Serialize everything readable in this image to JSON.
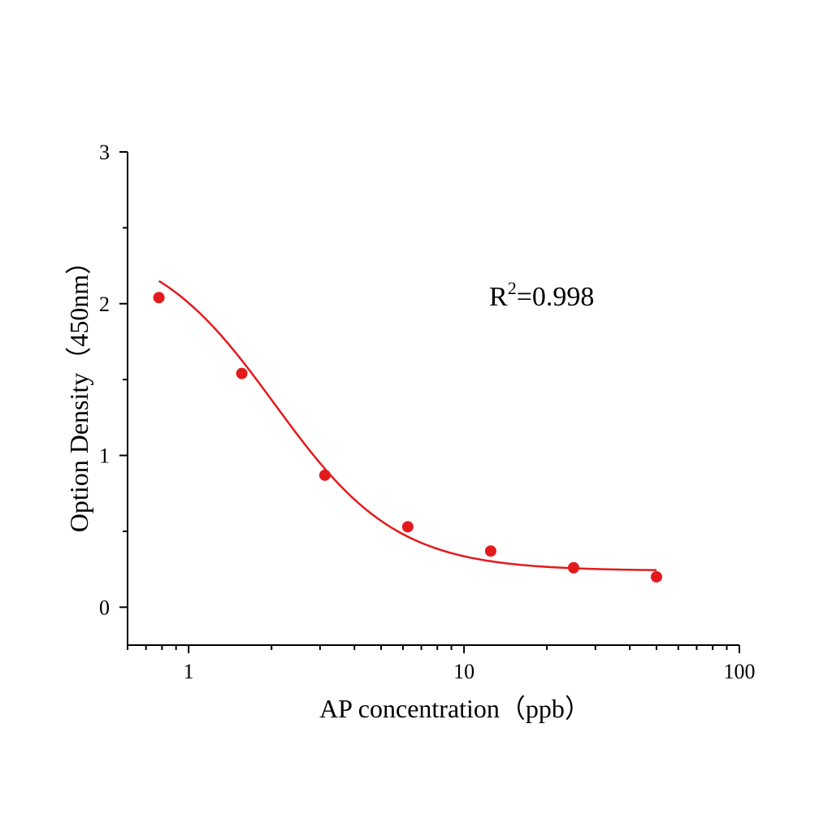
{
  "chart_data": {
    "type": "scatter",
    "xscale": "log",
    "xlim": [
      0.6,
      100
    ],
    "ylim": [
      -0.25,
      3
    ],
    "xlabel": "AP concentration（ppb）",
    "ylabel": "Option Density（450nm）",
    "x_ticks": [
      1,
      10,
      100
    ],
    "x_tick_labels": [
      "1",
      "10",
      "100"
    ],
    "y_ticks": [
      0,
      1,
      2,
      3
    ],
    "y_tick_labels": [
      "0",
      "1",
      "2",
      "3"
    ],
    "grid": false,
    "legend": "none",
    "series": [
      {
        "x": [
          0.78,
          1.56,
          3.125,
          6.25,
          12.5,
          25,
          50
        ],
        "y": [
          2.04,
          1.54,
          0.87,
          0.53,
          0.37,
          0.26,
          0.2
        ],
        "color": "#e31a1c",
        "marker": "circle",
        "fit": {
          "model": "4PL",
          "A": 2.44,
          "B": 1.95,
          "C": 2.05,
          "D": 0.24,
          "x_range": [
            0.78,
            50
          ]
        }
      }
    ],
    "annotations": [
      {
        "text_main": "R",
        "text_sup": "2",
        "text_rest": "=0.998",
        "position": "upper-right"
      }
    ]
  }
}
